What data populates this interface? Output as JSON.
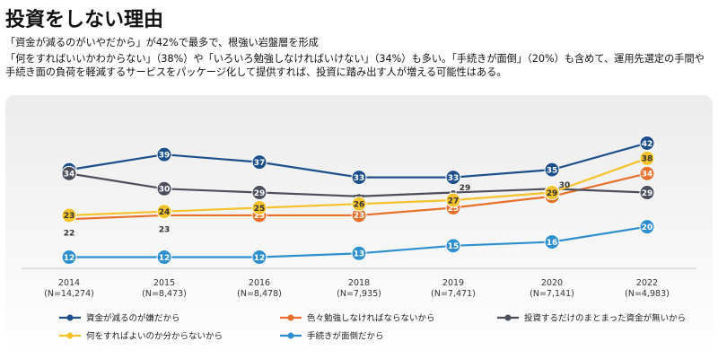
{
  "page": {
    "title": "投資をしない理由",
    "subtitle_line1": "「資金が減るのがいやだから」が42%で最多で、根強い岩盤層を形成",
    "subtitle_line2": "「何をすればいいかわからない」（38%）や「いろいろ勉強しなければいけない」（34%）も多い。「手続きが面倒」（20%）も含めて、運用先選定の手間や手続き面の負荷を軽減するサービスをパッケージ化して提供すれば、投資に踏み出す人が増える可能性はある。"
  },
  "chart_data": {
    "type": "line",
    "title": "投資をしない理由",
    "xlabel": "",
    "ylabel": "",
    "ylim": [
      10,
      44
    ],
    "grid": false,
    "legend_position": "bottom",
    "categories": [
      "2014",
      "2015",
      "2016",
      "2018",
      "2019",
      "2020",
      "2022"
    ],
    "category_sublabels": [
      "(N=14,274)",
      "(N=8,473)",
      "(N=8,478)",
      "(N=7,935)",
      "(N=7,471)",
      "(N=7,141)",
      "(N=4,983)"
    ],
    "series": [
      {
        "name": "資金が減るのが嫌だから",
        "color": "#1d4f8a",
        "values": [
          35,
          39,
          37,
          33,
          33,
          35,
          42
        ]
      },
      {
        "name": "色々勉強しなければならないから",
        "color": "#e8702a",
        "values": [
          22,
          23,
          23,
          23,
          25,
          28,
          34
        ]
      },
      {
        "name": "投資するだけのまとまった資金が無いから",
        "color": "#4d4f5c",
        "values": [
          34,
          30,
          29,
          28,
          29,
          30,
          29
        ]
      },
      {
        "name": "何をすればよいのか分からないから",
        "color": "#f6c22b",
        "values": [
          23,
          24,
          25,
          26,
          27,
          29,
          38
        ]
      },
      {
        "name": "手続きが面倒だから",
        "color": "#2e8fd0",
        "values": [
          12,
          12,
          12,
          13,
          15,
          16,
          20
        ]
      }
    ]
  }
}
